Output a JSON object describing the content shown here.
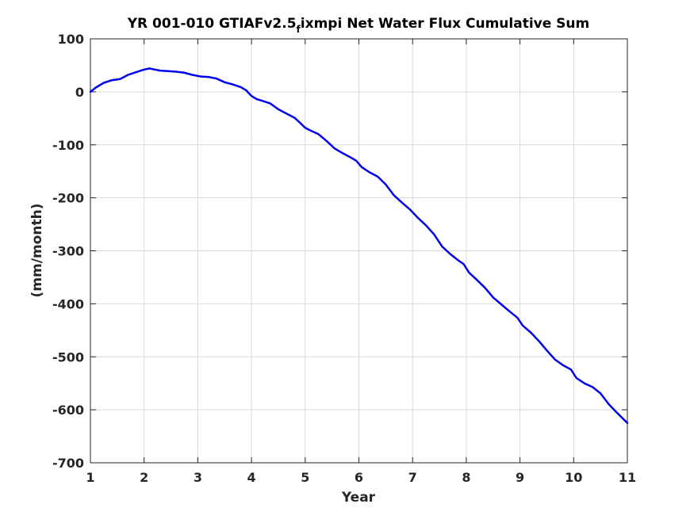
{
  "chart_data": {
    "type": "line",
    "title": {
      "main": "YR 001-010 GTIAFv2.5",
      "sub": "f",
      "rest": "ixmpi Net Water Flux Cumulative Sum"
    },
    "xlabel": "Year",
    "ylabel": "(mm/month)",
    "xlim": [
      1,
      11
    ],
    "ylim": [
      -700,
      100
    ],
    "xticks": [
      1,
      2,
      3,
      4,
      5,
      6,
      7,
      8,
      9,
      10,
      11
    ],
    "yticks": [
      100,
      0,
      -100,
      -200,
      -300,
      -400,
      -500,
      -600,
      -700
    ],
    "grid": true,
    "series": [
      {
        "color": "#0000ee",
        "x": [
          1.0,
          1.1,
          1.25,
          1.4,
          1.55,
          1.7,
          1.85,
          2.0,
          2.1,
          2.2,
          2.3,
          2.45,
          2.6,
          2.75,
          2.9,
          3.05,
          3.2,
          3.35,
          3.5,
          3.65,
          3.8,
          3.9,
          4.0,
          4.1,
          4.2,
          4.35,
          4.5,
          4.65,
          4.8,
          4.9,
          5.0,
          5.1,
          5.25,
          5.4,
          5.55,
          5.7,
          5.85,
          5.95,
          6.05,
          6.2,
          6.35,
          6.5,
          6.65,
          6.8,
          6.95,
          7.1,
          7.25,
          7.4,
          7.55,
          7.7,
          7.85,
          7.95,
          8.05,
          8.2,
          8.35,
          8.5,
          8.65,
          8.8,
          8.95,
          9.05,
          9.2,
          9.35,
          9.5,
          9.65,
          9.8,
          9.95,
          10.05,
          10.2,
          10.35,
          10.5,
          10.65,
          10.8,
          11.0
        ],
        "values": [
          0,
          8,
          17,
          22,
          24,
          32,
          37,
          42,
          44,
          42,
          40,
          39,
          38,
          36,
          32,
          29,
          28,
          25,
          18,
          14,
          9,
          3,
          -8,
          -14,
          -17,
          -22,
          -33,
          -41,
          -49,
          -58,
          -68,
          -73,
          -80,
          -93,
          -107,
          -116,
          -124,
          -130,
          -142,
          -152,
          -160,
          -175,
          -195,
          -209,
          -222,
          -238,
          -252,
          -269,
          -292,
          -306,
          -318,
          -325,
          -341,
          -355,
          -370,
          -388,
          -401,
          -414,
          -426,
          -441,
          -454,
          -470,
          -488,
          -505,
          -516,
          -524,
          -540,
          -550,
          -557,
          -569,
          -589,
          -605,
          -625
        ]
      }
    ]
  }
}
